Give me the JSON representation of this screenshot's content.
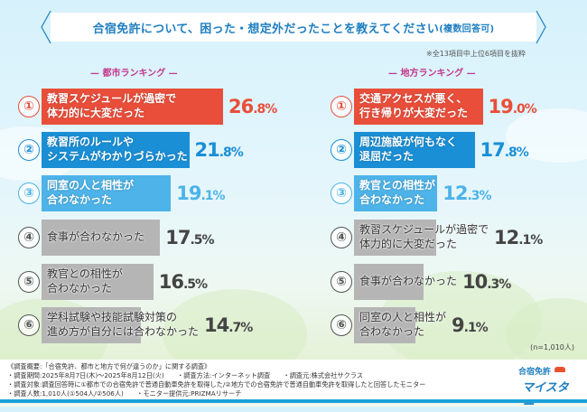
{
  "title": {
    "main": "合宿免許について、困った・想定外だったことを教えてください",
    "sub": "(複数回答可)"
  },
  "note": "※全13項目中上位6項目を抜粋",
  "colors": {
    "title": "#1f7fc1",
    "rank1": "#e94e3a",
    "rank2": "#1a8fd6",
    "rank3": "#4db3e8",
    "other": "#b5b5b5",
    "label_pink": "#c2388c"
  },
  "chart_data": [
    {
      "type": "bar",
      "orientation": "horizontal",
      "title": "— 都市ランキング —",
      "unit": "%",
      "categories": [
        "教習スケジュールが過密で\n体力的に大変だった",
        "教習所のルールや\nシステムがわかりづらかった",
        "同室の人と相性が\n合わなかった",
        "食事が合わなかった",
        "教官との相性が\n合わなかった",
        "学科試験や技能試験対策の\n進め方が自分には合わなかった"
      ],
      "values": [
        26.8,
        21.8,
        19.1,
        17.5,
        16.5,
        14.7
      ],
      "ranks": [
        "①",
        "②",
        "③",
        "④",
        "⑤",
        "⑥"
      ]
    },
    {
      "type": "bar",
      "orientation": "horizontal",
      "title": "— 地方ランキング —",
      "unit": "%",
      "categories": [
        "交通アクセスが悪く、\n行き帰りが大変だった",
        "周辺施設が何もなく\n退屈だった",
        "教官との相性が\n合わなかった",
        "教習スケジュールが過密で\n体力的に大変だった",
        "食事が合わなかった",
        "同室の人と相性が\n合わなかった"
      ],
      "values": [
        19.0,
        17.8,
        12.3,
        12.1,
        10.3,
        9.1
      ],
      "ranks": [
        "①",
        "②",
        "③",
        "④",
        "⑤",
        "⑥"
      ]
    }
  ],
  "n_count": "(n=1,010人)",
  "footer": {
    "lines": [
      "《調査概要:「合宿免許、都市と地方で何が違うのか」に関する調査》",
      "・調査期間:2025年8月7日(木)〜2025年8月12日(火)　　・調査方法:インターネット調査　　・調査元:株式会社サクラス",
      "・調査対象:調査回答時に①都市での合宿免許で普通自動車免許を取得した/②地方での合宿免許で普通自動車免許を取得したと回答したモニター",
      "・調査人数:1,010人(①504人/②506人)　　・モニター提供元:PRIZMAリサーチ"
    ]
  },
  "logo": {
    "top": "合宿免許",
    "bottom": "マイスター"
  }
}
